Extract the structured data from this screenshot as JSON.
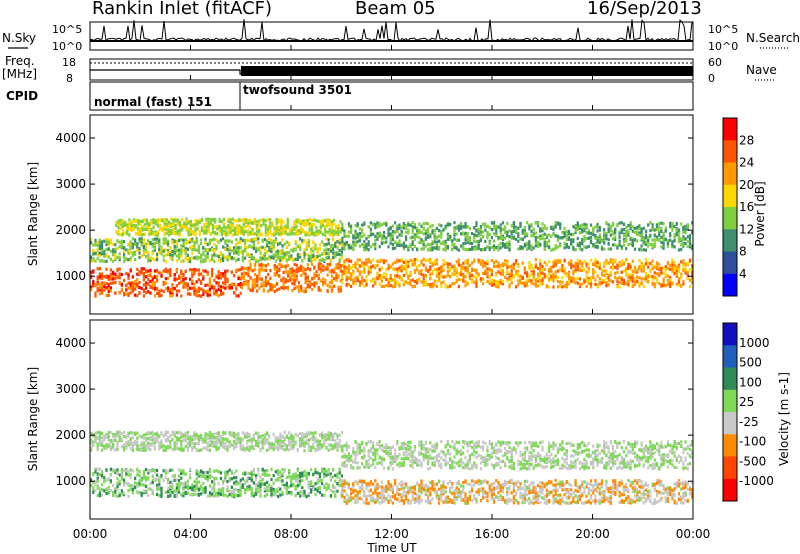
{
  "header": {
    "station": "Rankin Inlet (fitACF)",
    "beam": "Beam 05",
    "date": "16/Sep/2013"
  },
  "summary": {
    "nsky_label": "N.Sky",
    "nsearch_label": "N.Search",
    "freq_label": "Freq.",
    "freq_unit": "[MHz]",
    "nave_label": "Nave",
    "cpid_label": "CPID",
    "noise_ticks_left": [
      "10^5",
      "10^0"
    ],
    "noise_ticks_right": [
      "10^5",
      "10^0"
    ],
    "freq_ticks": [
      "18",
      "8"
    ],
    "nave_ticks": [
      "60",
      "0"
    ],
    "cpid_segments": [
      {
        "name": "normal (fast) 151",
        "start_hour": 0,
        "end_hour": 6
      },
      {
        "name": "twofsound 3501",
        "start_hour": 6,
        "end_hour": 24
      }
    ]
  },
  "colors": {
    "power": [
      "#0000ff",
      "#2f4f9f",
      "#3f8f6f",
      "#7fcf3f",
      "#ffd700",
      "#ff9900",
      "#ff5500",
      "#ff0000"
    ],
    "velocity": [
      "#ff0000",
      "#ff4500",
      "#ff8c00",
      "#c8c8c8",
      "#7ed957",
      "#2e8b57",
      "#1f5fbf",
      "#1010c0"
    ]
  },
  "chart_data": [
    {
      "type": "heatmap",
      "title": "",
      "xlabel": "Time UT",
      "ylabel": "Slant Range [km]",
      "x_ticks": [
        "00:00",
        "04:00",
        "08:00",
        "12:00",
        "16:00",
        "20:00",
        "00:00"
      ],
      "xlim_hours": [
        0,
        24
      ],
      "y_ticks": [
        "1000",
        "2000",
        "3000",
        "4000"
      ],
      "ylim_km": [
        180,
        4500
      ],
      "colorbar": {
        "label": "Power [dB]",
        "ticks": [
          "28",
          "24",
          "20",
          "16",
          "12",
          "8",
          "4"
        ],
        "range": [
          0,
          32
        ]
      },
      "echo_bands": [
        {
          "hours": [
            0,
            6
          ],
          "center_km": 900,
          "width_km": 600,
          "value": 26
        },
        {
          "hours": [
            0,
            10
          ],
          "center_km": 1600,
          "width_km": 500,
          "value": 14
        },
        {
          "hours": [
            1,
            10
          ],
          "center_km": 2100,
          "width_km": 350,
          "value": 16
        },
        {
          "hours": [
            6,
            10
          ],
          "center_km": 1000,
          "width_km": 600,
          "value": 24
        },
        {
          "hours": [
            10,
            24
          ],
          "center_km": 1100,
          "width_km": 600,
          "value": 22
        },
        {
          "hours": [
            10,
            24
          ],
          "center_km": 1900,
          "width_km": 600,
          "value": 12
        }
      ]
    },
    {
      "type": "heatmap",
      "title": "",
      "xlabel": "Time UT",
      "ylabel": "Slant Range [km]",
      "x_ticks": [
        "00:00",
        "04:00",
        "08:00",
        "12:00",
        "16:00",
        "20:00",
        "00:00"
      ],
      "xlim_hours": [
        0,
        24
      ],
      "y_ticks": [
        "1000",
        "2000",
        "3000",
        "4000"
      ],
      "ylim_km": [
        180,
        4500
      ],
      "colorbar": {
        "label": "Velocity [m s-1]",
        "ticks": [
          "1000",
          "500",
          "100",
          "25",
          "-25",
          "-100",
          "-500",
          "-1000"
        ],
        "range": [
          -1000,
          1000
        ]
      },
      "echo_bands": [
        {
          "hours": [
            0,
            10
          ],
          "center_km": 1000,
          "width_km": 600,
          "value": 150
        },
        {
          "hours": [
            0,
            10
          ],
          "center_km": 1900,
          "width_km": 400,
          "value": 0
        },
        {
          "hours": [
            10,
            24
          ],
          "center_km": 800,
          "width_km": 500,
          "value": -200
        },
        {
          "hours": [
            10,
            24
          ],
          "center_km": 1600,
          "width_km": 600,
          "value": 0
        }
      ]
    }
  ]
}
